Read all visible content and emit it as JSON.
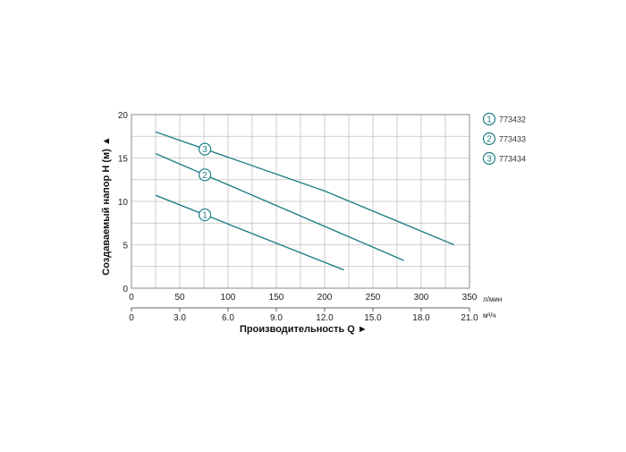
{
  "chart_data": {
    "type": "line",
    "ylabel": "Создаваемый напор H (м) ▲",
    "xlabel": "Производительность Q ►",
    "xlim": [
      0,
      350
    ],
    "ylim": [
      0,
      20
    ],
    "grid": true,
    "x_ticks": [
      0,
      50,
      100,
      150,
      200,
      250,
      300,
      350
    ],
    "y_ticks": [
      0,
      5,
      10,
      15,
      20
    ],
    "x_unit_top": "л/мин",
    "x_secondary_ticks": [
      "0",
      "3.0",
      "6.0",
      "9.0",
      "12.0",
      "15.0",
      "18.0",
      "21.0"
    ],
    "x_unit_bottom": "м³/ч",
    "legend_position": "right",
    "series": [
      {
        "name": "773432",
        "marker": "1",
        "x": [
          25,
          220
        ],
        "y": [
          10.7,
          2.1
        ],
        "marker_x": 76
      },
      {
        "name": "773433",
        "marker": "2",
        "x": [
          25,
          282
        ],
        "y": [
          15.5,
          3.2
        ],
        "marker_x": 76
      },
      {
        "name": "773434",
        "marker": "3",
        "x": [
          25,
          200,
          334
        ],
        "y": [
          18.0,
          11.2,
          5.0
        ],
        "marker_x": 76
      }
    ]
  },
  "colors": {
    "line": "#1f7f86",
    "grid": "#c0c0c0",
    "frame": "#8a8a8a"
  }
}
